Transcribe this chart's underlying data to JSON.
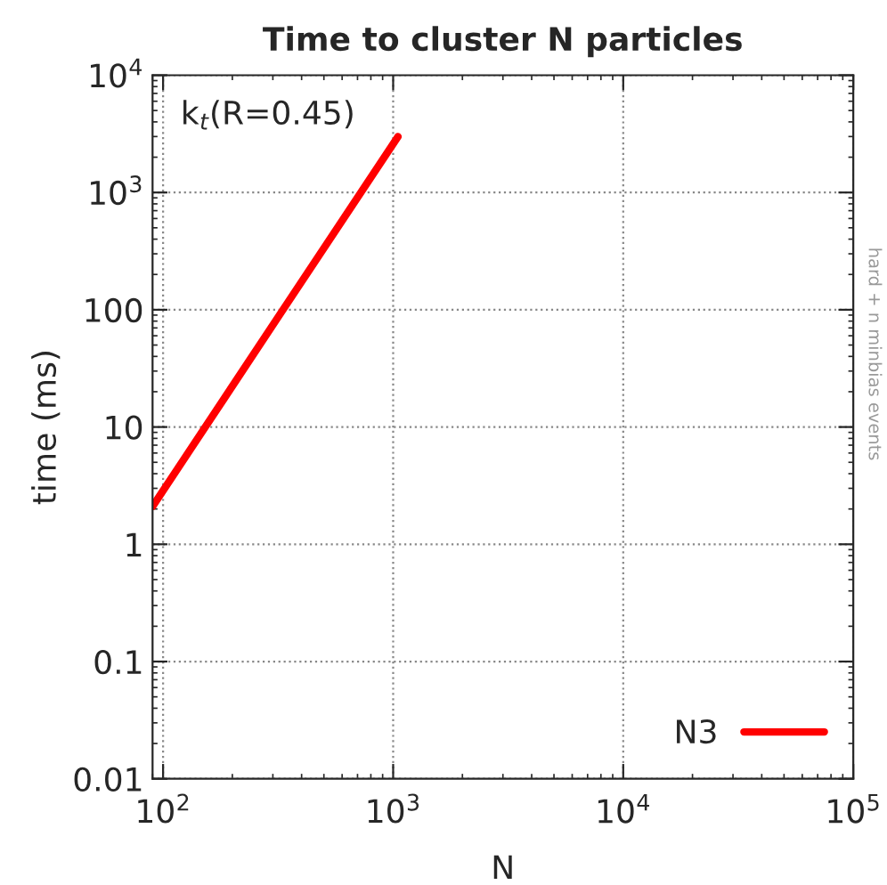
{
  "chart_data": {
    "type": "line",
    "title": "Time to cluster N particles",
    "xlabel": "N",
    "ylabel": "time (ms)",
    "annotations": [
      "k$_{t}$(R=0.45)",
      "hard + n minbias events"
    ],
    "series": [
      {
        "name": "N3",
        "color": "#ff0000",
        "x": [
          90,
          324,
          1050
        ],
        "values": [
          2.1,
          93,
          3000
        ]
      }
    ],
    "log": "xy",
    "xlim": [
      90,
      100000
    ],
    "ylim": [
      0.01,
      10000
    ],
    "xticks": [
      {
        "value": 100,
        "label": "10$^{2}$"
      },
      {
        "value": 1000,
        "label": "10$^{3}$"
      },
      {
        "value": 10000,
        "label": "10$^{4}$"
      },
      {
        "value": 100000,
        "label": "10$^{5}$"
      }
    ],
    "yticks": [
      0.01,
      0.1,
      1,
      10,
      100,
      {
        "value": 1000,
        "label": "10$^{3}$"
      },
      {
        "value": 10000,
        "label": "10$^{4}$"
      }
    ],
    "grid": true,
    "legend": "bottom right",
    "line_style": "solid",
    "marker": "none"
  }
}
